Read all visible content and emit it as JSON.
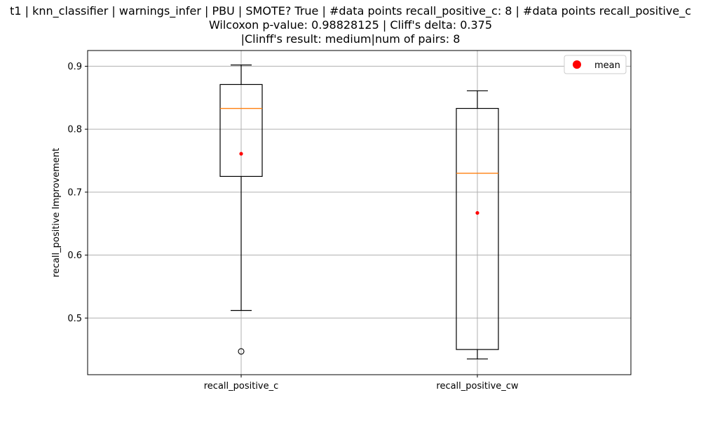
{
  "chart_data": {
    "type": "box",
    "title_lines": [
      "t1 | knn_classifier | warnings_infer | PBU | SMOTE? True | #data points recall_positive_c: 8 | #data points recall_positive_c",
      "Wilcoxon p-value: 0.98828125 | Cliff's delta: 0.375",
      "|Clinff's result: medium|num of pairs: 8"
    ],
    "xlabel": "",
    "ylabel": "recall_positive Improvement",
    "ylim": [
      0.41,
      0.925
    ],
    "yticks": [
      0.5,
      0.6,
      0.7,
      0.8,
      0.9
    ],
    "ytick_labels": [
      "0.5",
      "0.6",
      "0.7",
      "0.8",
      "0.9"
    ],
    "grid": true,
    "legend": {
      "placement": "top-right",
      "entries": [
        {
          "label": "mean",
          "color": "#ff0000",
          "marker": "circle"
        }
      ]
    },
    "categories": [
      "recall_positive_c",
      "recall_positive_cw"
    ],
    "boxes": [
      {
        "name": "recall_positive_c",
        "whisker_low": 0.512,
        "q1": 0.725,
        "median": 0.833,
        "q3": 0.871,
        "whisker_high": 0.902,
        "mean": 0.761,
        "outliers": [
          0.447
        ]
      },
      {
        "name": "recall_positive_cw",
        "whisker_low": 0.435,
        "q1": 0.45,
        "median": 0.73,
        "q3": 0.833,
        "whisker_high": 0.861,
        "mean": 0.667,
        "outliers": []
      }
    ],
    "colors": {
      "box": "#000000",
      "median": "#ff7f0e",
      "mean": "#ff0000",
      "grid": "#b0b0b0"
    }
  }
}
